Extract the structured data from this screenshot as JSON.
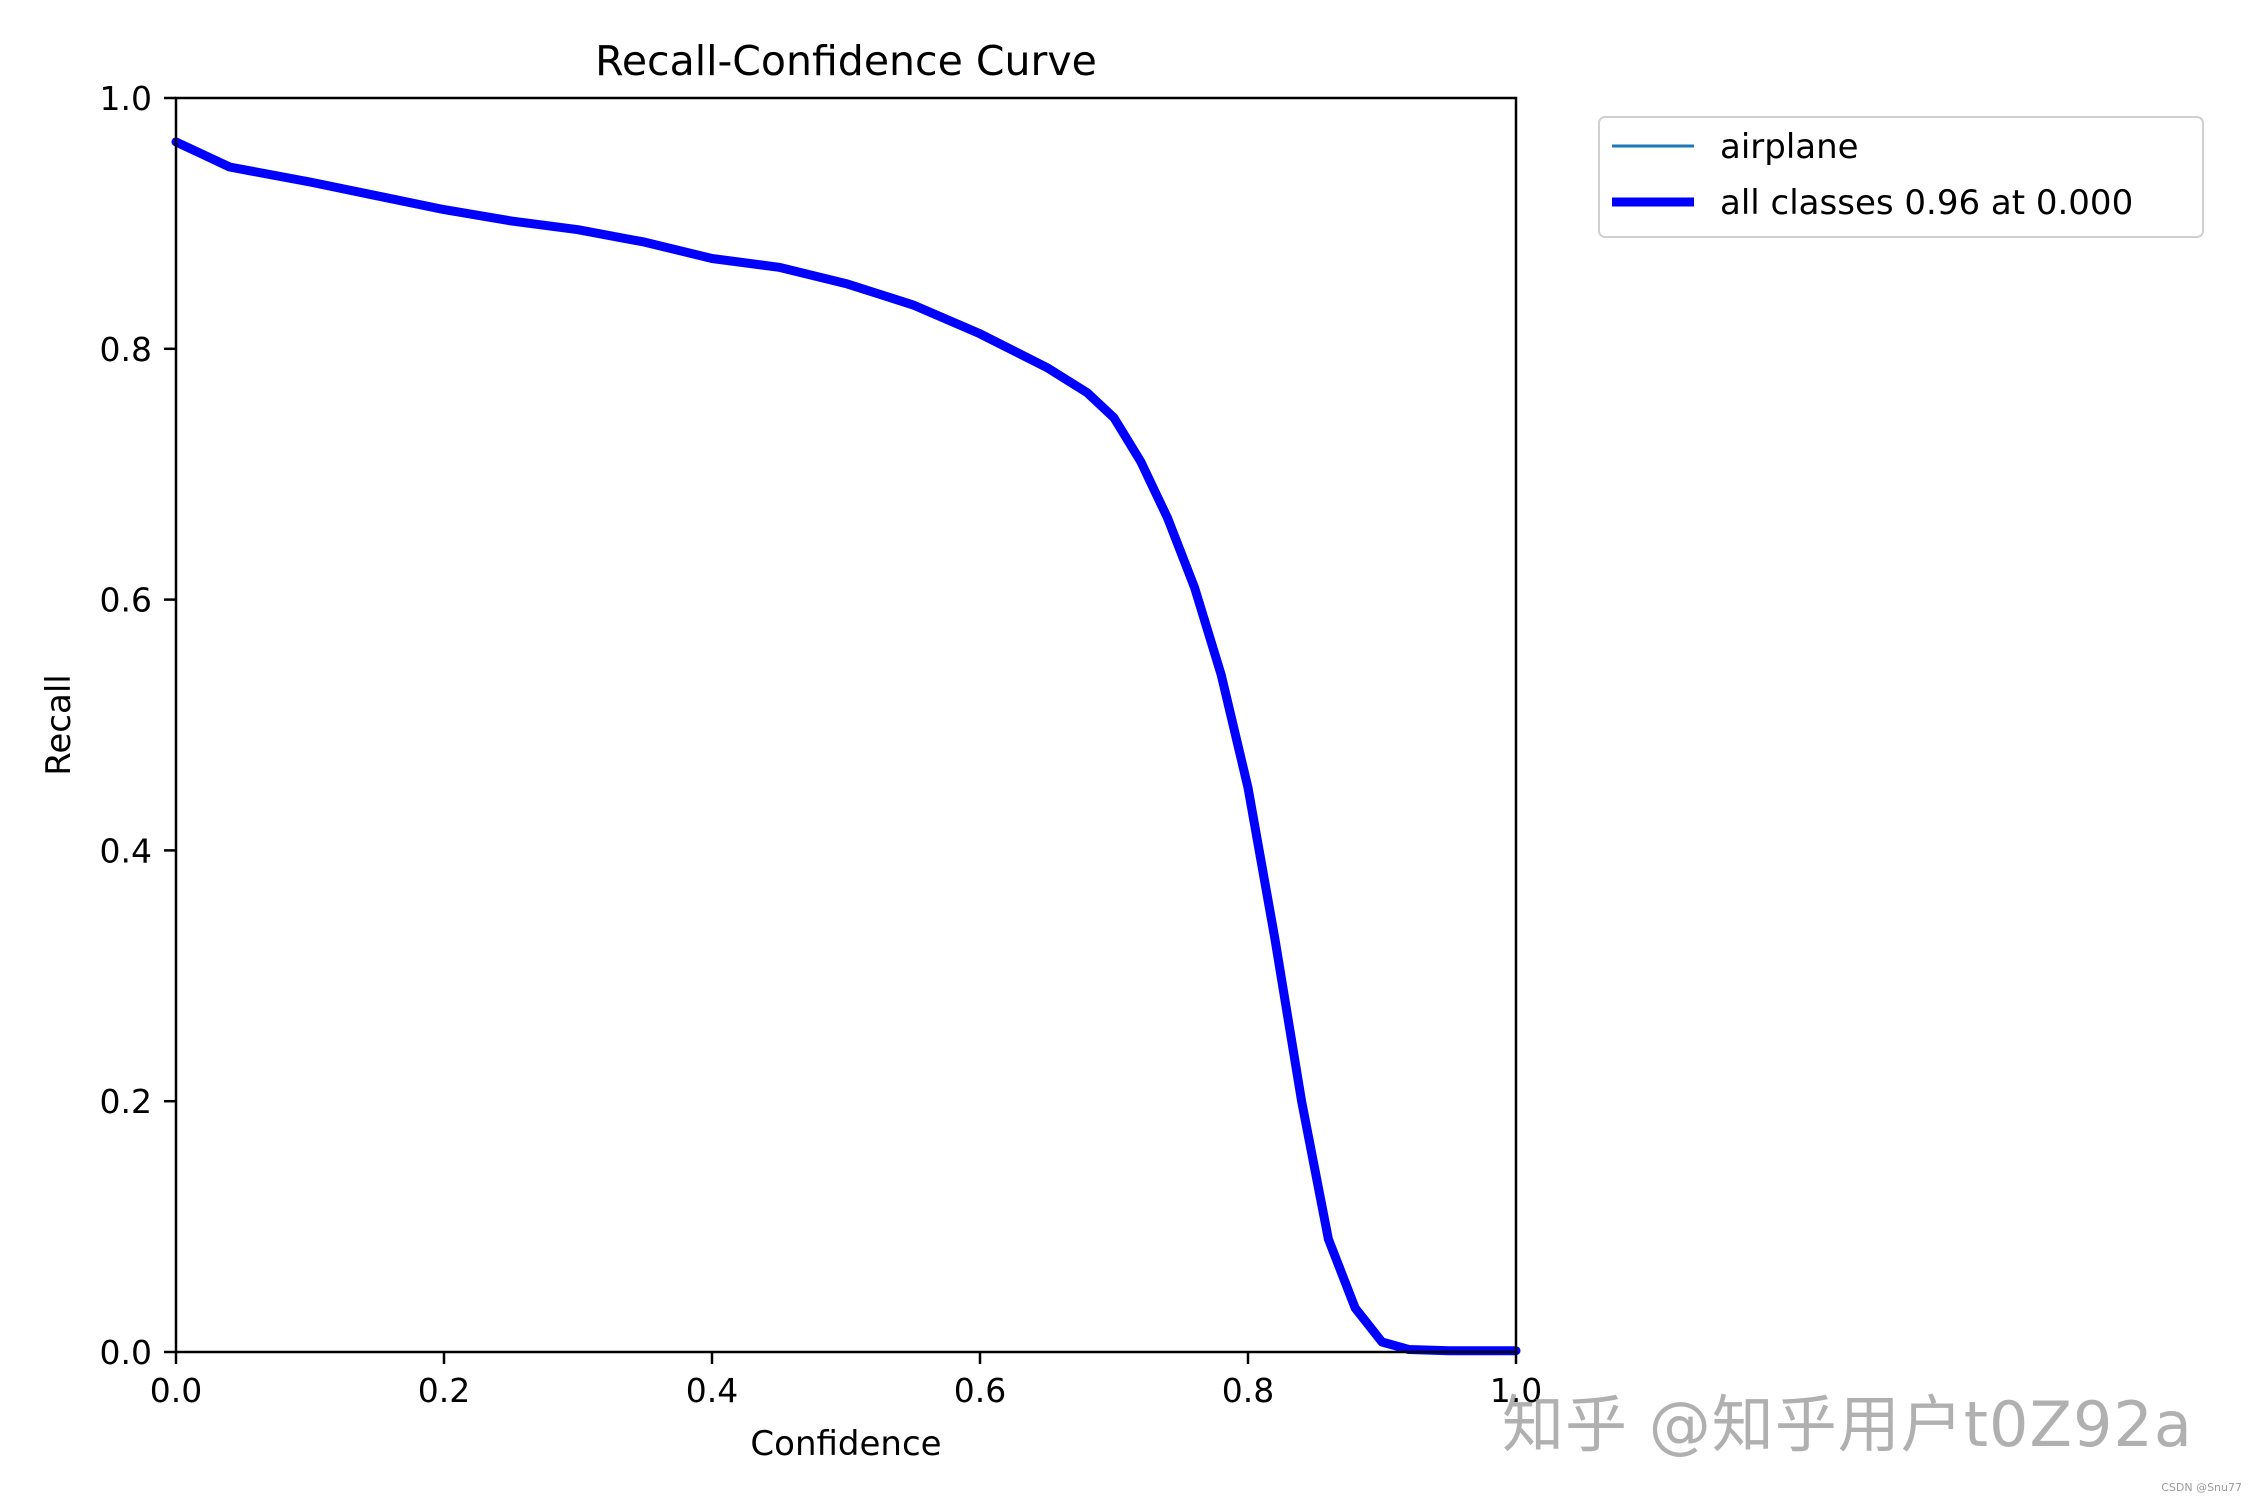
{
  "chart_data": {
    "type": "line",
    "title": "Recall-Confidence Curve",
    "xlabel": "Confidence",
    "ylabel": "Recall",
    "xlim": [
      0.0,
      1.0
    ],
    "ylim": [
      0.0,
      1.0
    ],
    "xticks": [
      "0.0",
      "0.2",
      "0.4",
      "0.6",
      "0.8",
      "1.0"
    ],
    "yticks": [
      "0.0",
      "0.2",
      "0.4",
      "0.6",
      "0.8",
      "1.0"
    ],
    "grid": false,
    "legend_position": "outside upper right",
    "x": [
      0.0,
      0.02,
      0.04,
      0.1,
      0.15,
      0.2,
      0.25,
      0.3,
      0.35,
      0.4,
      0.45,
      0.5,
      0.55,
      0.6,
      0.65,
      0.68,
      0.7,
      0.72,
      0.74,
      0.76,
      0.78,
      0.8,
      0.82,
      0.84,
      0.86,
      0.88,
      0.9,
      0.92,
      0.95,
      1.0
    ],
    "series": [
      {
        "name": "airplane",
        "color": "#1f77b4",
        "linewidth": "thin",
        "values": [
          0.965,
          0.955,
          0.945,
          0.933,
          0.922,
          0.911,
          0.902,
          0.895,
          0.885,
          0.872,
          0.865,
          0.852,
          0.835,
          0.812,
          0.785,
          0.765,
          0.745,
          0.71,
          0.665,
          0.61,
          0.54,
          0.45,
          0.33,
          0.2,
          0.09,
          0.035,
          0.008,
          0.002,
          0.001,
          0.001
        ]
      },
      {
        "name": "all classes 0.96 at 0.000",
        "color": "#0000ff",
        "linewidth": "thick",
        "values": [
          0.965,
          0.955,
          0.945,
          0.933,
          0.922,
          0.911,
          0.902,
          0.895,
          0.885,
          0.872,
          0.865,
          0.852,
          0.835,
          0.812,
          0.785,
          0.765,
          0.745,
          0.71,
          0.665,
          0.61,
          0.54,
          0.45,
          0.33,
          0.2,
          0.09,
          0.035,
          0.008,
          0.002,
          0.001,
          0.001
        ]
      }
    ]
  },
  "legend": {
    "items": [
      {
        "label": "airplane",
        "color": "#1f77b4"
      },
      {
        "label": "all classes 0.96 at 0.000",
        "color": "#0000ff"
      }
    ]
  },
  "watermark": {
    "text": "知乎 @知乎用户t0Z92a",
    "credit": "CSDN @Snu77"
  }
}
